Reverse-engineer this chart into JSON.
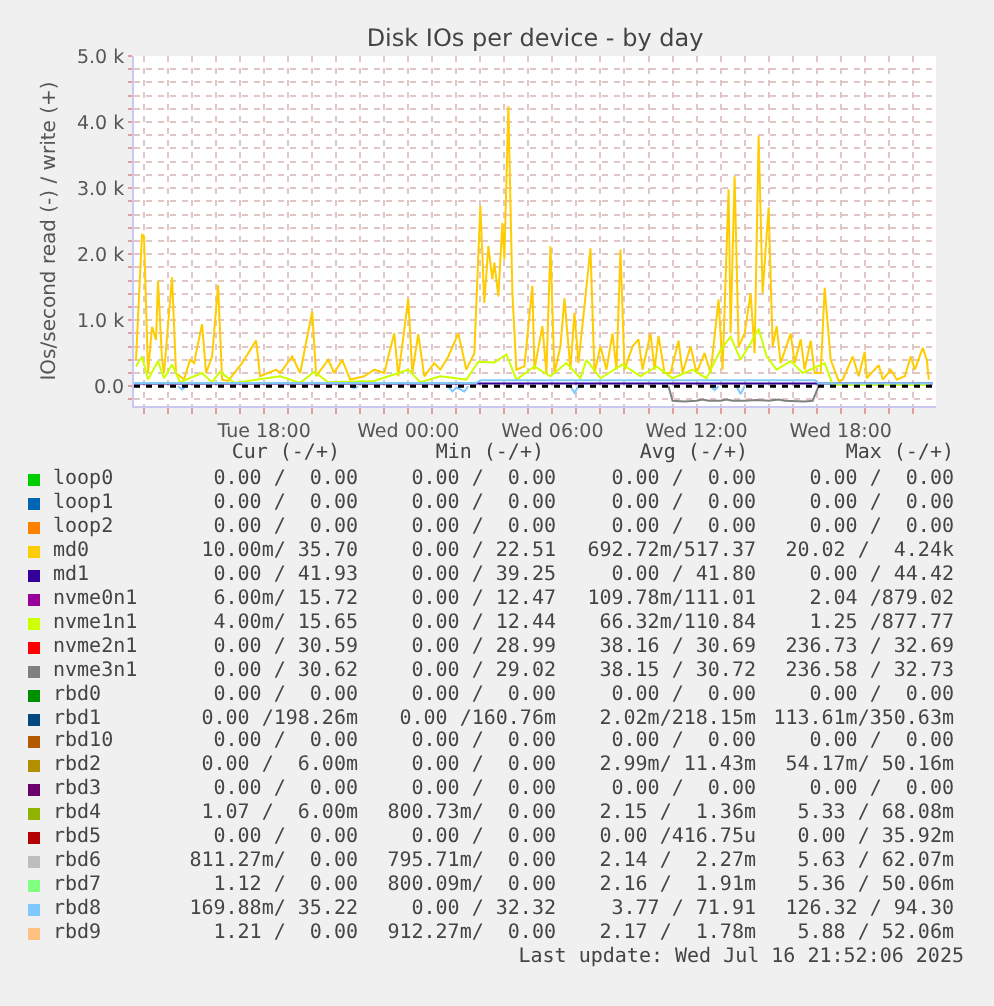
{
  "chart_data": {
    "type": "line",
    "title": "Disk IOs per device - by day",
    "ylabel": "IOs/second read (-) / write (+)",
    "xlim": [
      "2025-07-15T12:35",
      "2025-07-16T21:58"
    ],
    "xticks": [
      {
        "value": "2025-07-15T13:00",
        "label": null
      },
      {
        "value": "2025-07-15T14:00",
        "label": null
      },
      {
        "value": "2025-07-15T15:00",
        "label": null
      },
      {
        "value": "2025-07-15T16:00",
        "label": null
      },
      {
        "value": "2025-07-15T17:00",
        "label": null
      },
      {
        "value": "2025-07-15T18:00",
        "label": "Tue 18:00"
      },
      {
        "value": "2025-07-15T19:00",
        "label": null
      },
      {
        "value": "2025-07-15T20:00",
        "label": null
      },
      {
        "value": "2025-07-15T21:00",
        "label": null
      },
      {
        "value": "2025-07-15T22:00",
        "label": null
      },
      {
        "value": "2025-07-15T23:00",
        "label": null
      },
      {
        "value": "2025-07-16T00:00",
        "label": "Wed 00:00"
      },
      {
        "value": "2025-07-16T01:00",
        "label": null
      },
      {
        "value": "2025-07-16T02:00",
        "label": null
      },
      {
        "value": "2025-07-16T03:00",
        "label": null
      },
      {
        "value": "2025-07-16T04:00",
        "label": null
      },
      {
        "value": "2025-07-16T05:00",
        "label": null
      },
      {
        "value": "2025-07-16T06:00",
        "label": "Wed 06:00"
      },
      {
        "value": "2025-07-16T07:00",
        "label": null
      },
      {
        "value": "2025-07-16T08:00",
        "label": null
      },
      {
        "value": "2025-07-16T09:00",
        "label": null
      },
      {
        "value": "2025-07-16T10:00",
        "label": null
      },
      {
        "value": "2025-07-16T11:00",
        "label": null
      },
      {
        "value": "2025-07-16T12:00",
        "label": "Wed 12:00"
      },
      {
        "value": "2025-07-16T13:00",
        "label": null
      },
      {
        "value": "2025-07-16T14:00",
        "label": null
      },
      {
        "value": "2025-07-16T15:00",
        "label": null
      },
      {
        "value": "2025-07-16T16:00",
        "label": null
      },
      {
        "value": "2025-07-16T17:00",
        "label": null
      },
      {
        "value": "2025-07-16T18:00",
        "label": "Wed 18:00"
      },
      {
        "value": "2025-07-16T19:00",
        "label": null
      },
      {
        "value": "2025-07-16T20:00",
        "label": null
      },
      {
        "value": "2025-07-16T21:00",
        "label": null
      }
    ],
    "ylim": [
      -300,
      5000
    ],
    "yticks": [
      {
        "value": -200,
        "label": null
      },
      {
        "value": 0,
        "label": "0.0"
      },
      {
        "value": 200,
        "label": null
      },
      {
        "value": 400,
        "label": null
      },
      {
        "value": 600,
        "label": null
      },
      {
        "value": 800,
        "label": null
      },
      {
        "value": 1000,
        "label": "1.0 k"
      },
      {
        "value": 1200,
        "label": null
      },
      {
        "value": 1400,
        "label": null
      },
      {
        "value": 1600,
        "label": null
      },
      {
        "value": 1800,
        "label": null
      },
      {
        "value": 2000,
        "label": "2.0 k"
      },
      {
        "value": 2200,
        "label": null
      },
      {
        "value": 2400,
        "label": null
      },
      {
        "value": 2600,
        "label": null
      },
      {
        "value": 2800,
        "label": null
      },
      {
        "value": 3000,
        "label": "3.0 k"
      },
      {
        "value": 3200,
        "label": null
      },
      {
        "value": 3400,
        "label": null
      },
      {
        "value": 3600,
        "label": null
      },
      {
        "value": 3800,
        "label": null
      },
      {
        "value": 4000,
        "label": "4.0 k"
      },
      {
        "value": 4200,
        "label": null
      },
      {
        "value": 4400,
        "label": null
      },
      {
        "value": 4600,
        "label": null
      },
      {
        "value": 4800,
        "label": null
      },
      {
        "value": 5000,
        "label": "5.0 k"
      }
    ],
    "grid": true,
    "legend": "bottom",
    "x": [
      "2025-07-15T12:35",
      "2025-07-16T21:50"
    ],
    "ref_lines": [
      {
        "axis": "y",
        "value": 0,
        "color": "#000000",
        "line_style": "dotted"
      }
    ],
    "series": [
      {
        "name": "loop0",
        "color": "#00cc00",
        "values": [
          null,
          null
        ]
      },
      {
        "name": "loop1",
        "color": "#0066b3",
        "values": [
          null,
          null
        ]
      },
      {
        "name": "loop2",
        "color": "#ff8000",
        "values": [
          null,
          null
        ]
      },
      {
        "name": "md0",
        "color": "#ffcc00",
        "x": [
          "2025-07-15T12:40",
          "2025-07-15T12:55",
          "2025-07-15T13:00",
          "2025-07-15T13:10",
          "2025-07-15T13:20",
          "2025-07-15T13:30",
          "2025-07-15T13:35",
          "2025-07-15T13:45",
          "2025-07-15T13:50",
          "2025-07-15T14:10",
          "2025-07-15T14:20",
          "2025-07-15T14:40",
          "2025-07-15T14:55",
          "2025-07-15T15:05",
          "2025-07-15T15:25",
          "2025-07-15T15:35",
          "2025-07-15T15:50",
          "2025-07-15T16:05",
          "2025-07-15T16:15",
          "2025-07-15T16:30",
          "2025-07-15T17:05",
          "2025-07-15T17:40",
          "2025-07-15T17:50",
          "2025-07-15T18:30",
          "2025-07-15T18:40",
          "2025-07-15T19:10",
          "2025-07-15T19:30",
          "2025-07-15T20:00",
          "2025-07-15T20:10",
          "2025-07-15T20:40",
          "2025-07-15T20:55",
          "2025-07-15T21:15",
          "2025-07-15T21:35",
          "2025-07-15T22:10",
          "2025-07-15T22:35",
          "2025-07-15T23:00",
          "2025-07-15T23:25",
          "2025-07-15T23:35",
          "2025-07-16T00:00",
          "2025-07-16T00:10",
          "2025-07-16T00:25",
          "2025-07-16T00:40",
          "2025-07-16T01:05",
          "2025-07-16T01:20",
          "2025-07-16T01:40",
          "2025-07-16T02:05",
          "2025-07-16T02:25",
          "2025-07-16T02:45",
          "2025-07-16T03:00",
          "2025-07-16T03:10",
          "2025-07-16T03:20",
          "2025-07-16T03:30",
          "2025-07-16T03:35",
          "2025-07-16T03:45",
          "2025-07-16T03:55",
          "2025-07-16T04:00",
          "2025-07-16T04:10",
          "2025-07-16T04:20",
          "2025-07-16T04:30",
          "2025-07-16T04:50",
          "2025-07-16T05:10",
          "2025-07-16T05:15",
          "2025-07-16T05:35",
          "2025-07-16T05:45",
          "2025-07-16T05:55",
          "2025-07-16T06:05",
          "2025-07-16T06:20",
          "2025-07-16T06:30",
          "2025-07-16T06:45",
          "2025-07-16T06:55",
          "2025-07-16T07:05",
          "2025-07-16T07:20",
          "2025-07-16T07:35",
          "2025-07-16T07:45",
          "2025-07-16T08:00",
          "2025-07-16T08:15",
          "2025-07-16T08:30",
          "2025-07-16T08:40",
          "2025-07-16T08:50",
          "2025-07-16T09:00",
          "2025-07-16T09:20",
          "2025-07-16T09:35",
          "2025-07-16T09:45",
          "2025-07-16T10:05",
          "2025-07-16T10:15",
          "2025-07-16T10:25",
          "2025-07-16T10:40",
          "2025-07-16T10:55",
          "2025-07-16T11:15",
          "2025-07-16T11:25",
          "2025-07-16T11:45",
          "2025-07-16T12:00",
          "2025-07-16T12:20",
          "2025-07-16T12:35",
          "2025-07-16T12:55",
          "2025-07-16T13:05",
          "2025-07-16T13:20",
          "2025-07-16T13:25",
          "2025-07-16T13:35",
          "2025-07-16T13:45",
          "2025-07-16T14:00",
          "2025-07-16T14:15",
          "2025-07-16T14:25",
          "2025-07-16T14:35",
          "2025-07-16T14:45",
          "2025-07-16T15:00",
          "2025-07-16T15:10",
          "2025-07-16T15:20",
          "2025-07-16T15:30",
          "2025-07-16T15:55",
          "2025-07-16T16:05",
          "2025-07-16T16:20",
          "2025-07-16T16:30",
          "2025-07-16T16:45",
          "2025-07-16T16:55",
          "2025-07-16T17:10",
          "2025-07-16T17:20",
          "2025-07-16T17:35",
          "2025-07-16T17:55",
          "2025-07-16T18:05",
          "2025-07-16T18:30",
          "2025-07-16T18:45",
          "2025-07-16T19:00",
          "2025-07-16T19:05",
          "2025-07-16T19:35",
          "2025-07-16T19:45",
          "2025-07-16T20:05",
          "2025-07-16T20:20",
          "2025-07-16T20:40",
          "2025-07-16T20:55",
          "2025-07-16T21:05",
          "2025-07-16T21:25",
          "2025-07-16T21:35",
          "2025-07-16T21:40"
        ],
        "values": [
          400,
          2300,
          2270,
          200,
          900,
          700,
          1600,
          400,
          200,
          1650,
          200,
          100,
          400,
          350,
          940,
          200,
          450,
          1530,
          100,
          80,
          350,
          690,
          150,
          250,
          200,
          450,
          200,
          1130,
          150,
          400,
          200,
          400,
          100,
          150,
          250,
          200,
          800,
          150,
          1330,
          200,
          790,
          150,
          350,
          250,
          450,
          800,
          250,
          500,
          2730,
          1260,
          2120,
          1620,
          1870,
          1360,
          2470,
          1920,
          4240,
          1410,
          250,
          300,
          1520,
          250,
          910,
          200,
          2120,
          200,
          600,
          1330,
          250,
          1110,
          350,
          1210,
          2090,
          200,
          600,
          250,
          800,
          250,
          2070,
          250,
          600,
          710,
          250,
          800,
          250,
          760,
          200,
          200,
          690,
          200,
          600,
          200,
          500,
          200,
          1310,
          250,
          2980,
          800,
          3180,
          600,
          800,
          1410,
          500,
          3790,
          1410,
          2710,
          600,
          910,
          350,
          800,
          350,
          710,
          250,
          690,
          200,
          200,
          1490,
          400,
          80,
          100,
          450,
          150,
          520,
          120,
          320,
          100,
          250,
          100,
          150,
          450,
          250,
          580,
          400,
          100
        ]
      },
      {
        "name": "md1",
        "color": "#330099",
        "values": [
          40,
          40
        ]
      },
      {
        "name": "nvme0n1",
        "color": "#990099",
        "values": [
          null,
          null
        ]
      },
      {
        "name": "nvme1n1",
        "color": "#ccff00",
        "x": [
          "2025-07-15T12:40",
          "2025-07-15T12:55",
          "2025-07-15T13:10",
          "2025-07-15T13:35",
          "2025-07-15T13:50",
          "2025-07-15T14:10",
          "2025-07-15T14:30",
          "2025-07-15T15:25",
          "2025-07-15T15:50",
          "2025-07-15T16:10",
          "2025-07-15T16:45",
          "2025-07-15T18:40",
          "2025-07-15T19:30",
          "2025-07-15T20:05",
          "2025-07-15T20:40",
          "2025-07-15T22:35",
          "2025-07-16T00:00",
          "2025-07-16T00:30",
          "2025-07-16T01:20",
          "2025-07-16T02:25",
          "2025-07-16T02:55",
          "2025-07-16T03:35",
          "2025-07-16T04:05",
          "2025-07-16T04:30",
          "2025-07-16T05:15",
          "2025-07-16T05:55",
          "2025-07-16T06:35",
          "2025-07-16T07:10",
          "2025-07-16T07:25",
          "2025-07-16T08:00",
          "2025-07-16T08:55",
          "2025-07-16T09:40",
          "2025-07-16T10:20",
          "2025-07-16T11:00",
          "2025-07-16T11:50",
          "2025-07-16T12:25",
          "2025-07-16T13:00",
          "2025-07-16T13:25",
          "2025-07-16T13:50",
          "2025-07-16T14:15",
          "2025-07-16T14:35",
          "2025-07-16T14:55",
          "2025-07-16T15:20",
          "2025-07-16T15:55",
          "2025-07-16T16:25",
          "2025-07-16T17:20",
          "2025-07-16T17:40",
          "2025-07-16T21:40"
        ],
        "values": [
          300,
          450,
          100,
          380,
          120,
          330,
          60,
          200,
          60,
          220,
          50,
          150,
          50,
          220,
          60,
          80,
          250,
          60,
          150,
          100,
          370,
          360,
          480,
          100,
          300,
          150,
          350,
          120,
          400,
          120,
          330,
          150,
          300,
          120,
          250,
          120,
          550,
          750,
          400,
          650,
          870,
          450,
          250,
          380,
          200,
          350,
          20,
          20
        ]
      },
      {
        "name": "nvme2n1",
        "color": "#ff0000",
        "values": [
          null,
          null
        ]
      },
      {
        "name": "nvme3n1",
        "color": "#808080",
        "values": [
          null,
          null
        ]
      },
      {
        "color": "#808080",
        "x": [
          "2025-07-16T10:50",
          "2025-07-16T11:00",
          "2025-07-16T11:30",
          "2025-07-16T12:00",
          "2025-07-16T12:15",
          "2025-07-16T12:30",
          "2025-07-16T13:00",
          "2025-07-16T13:15",
          "2025-07-16T13:30",
          "2025-07-16T14:00",
          "2025-07-16T14:30",
          "2025-07-16T15:00",
          "2025-07-16T15:25",
          "2025-07-16T15:40",
          "2025-07-16T16:30",
          "2025-07-16T16:50",
          "2025-07-16T17:05"
        ],
        "values": [
          0,
          -220,
          -230,
          -220,
          -200,
          -220,
          -220,
          -200,
          -220,
          -220,
          -210,
          -220,
          -200,
          -220,
          -230,
          -220,
          0
        ]
      },
      {
        "name": "rbd0",
        "color": "#008f00",
        "values": [
          null,
          null
        ]
      },
      {
        "name": "rbd1",
        "color": "#00487d",
        "values": [
          null,
          null
        ]
      },
      {
        "name": "rbd10",
        "color": "#b35a00",
        "values": [
          null,
          null
        ]
      },
      {
        "name": "rbd2",
        "color": "#b38f00",
        "values": [
          null,
          null
        ]
      },
      {
        "name": "rbd3",
        "color": "#6b006b",
        "values": [
          null,
          null
        ]
      },
      {
        "name": "rbd4",
        "color": "#8fb300",
        "values": [
          null,
          null
        ]
      },
      {
        "name": "rbd5",
        "color": "#b30000",
        "values": [
          null,
          null
        ]
      },
      {
        "name": "rbd6",
        "color": "#bebebe",
        "values": [
          null,
          null
        ]
      },
      {
        "name": "rbd7",
        "color": "#80ff80",
        "values": [
          null,
          null
        ]
      },
      {
        "name": "rbd8",
        "color": "#80c9ff",
        "x": [
          "2025-07-15T12:35",
          "2025-07-16T02:50",
          "2025-07-16T03:00",
          "2025-07-16T16:55",
          "2025-07-16T17:05",
          "2025-07-16T21:50"
        ],
        "values": [
          50,
          50,
          90,
          90,
          40,
          40
        ]
      },
      {
        "color": "#80c9ff",
        "x": [
          "2025-07-15T14:25",
          "2025-07-15T14:35",
          "2025-07-15T14:45",
          "2025-07-15T18:00",
          "2025-07-15T21:35",
          "2025-07-15T21:45",
          "2025-07-15T21:55",
          "2025-07-16T00:00",
          "2025-07-16T01:40",
          "2025-07-16T01:50",
          "2025-07-16T02:00",
          "2025-07-16T02:20",
          "2025-07-16T02:30",
          "2025-07-16T04:00",
          "2025-07-16T06:45",
          "2025-07-16T06:55",
          "2025-07-16T07:05",
          "2025-07-16T10:00",
          "2025-07-16T12:35",
          "2025-07-16T12:45",
          "2025-07-16T12:55",
          "2025-07-16T13:15",
          "2025-07-16T13:40",
          "2025-07-16T13:50",
          "2025-07-16T14:00"
        ],
        "values": [
          0,
          -50,
          0,
          null,
          0,
          -30,
          0,
          null,
          0,
          -80,
          -20,
          -80,
          0,
          null,
          0,
          -100,
          0,
          null,
          0,
          -60,
          0,
          null,
          0,
          -120,
          0
        ]
      },
      {
        "name": "rbd9",
        "color": "#ffc080",
        "values": [
          null,
          null
        ]
      }
    ],
    "annotations": [
      "Cur (-/+)",
      "Min (-/+)",
      "Avg (-/+)",
      "Max (-/+)",
      "0.00 /  0.00",
      "0.00 /  0.00",
      "0.00 /  0.00",
      "0.00 /  0.00",
      "0.00 /  0.00",
      "0.00 /  0.00",
      "0.00 /  0.00",
      "0.00 /  0.00",
      "0.00 /  0.00",
      "0.00 /  0.00",
      "0.00 /  0.00",
      "0.00 /  0.00",
      "10.00m/ 35.70",
      "0.00 / 22.51",
      "692.72m/517.37",
      "20.02 /  4.24k",
      "0.00 / 41.93",
      "0.00 / 39.25",
      "0.00 / 41.80",
      "0.00 / 44.42",
      "6.00m/ 15.72",
      "0.00 / 12.47",
      "109.78m/111.01",
      "2.04 /879.02",
      "4.00m/ 15.65",
      "0.00 / 12.44",
      "66.32m/110.84",
      "1.25 /877.77",
      "0.00 / 30.59",
      "0.00 / 28.99",
      "38.16 / 30.69",
      "236.73 / 32.69",
      "0.00 / 30.62",
      "0.00 / 29.02",
      "38.15 / 30.72",
      "236.58 / 32.73",
      "0.00 /  0.00",
      "0.00 /  0.00",
      "0.00 /  0.00",
      "0.00 /  0.00",
      "0.00 /198.26m",
      "0.00 /160.76m",
      "2.02m/218.15m",
      "113.61m/350.63m",
      "0.00 /  0.00",
      "0.00 /  0.00",
      "0.00 /  0.00",
      "0.00 /  0.00",
      "0.00 /  6.00m",
      "0.00 /  0.00",
      "2.99m/ 11.43m",
      "54.17m/ 50.16m",
      "0.00 /  0.00",
      "0.00 /  0.00",
      "0.00 /  0.00",
      "0.00 /  0.00",
      "1.07 /  6.00m",
      "800.73m/  0.00",
      "2.15 /  1.36m",
      "5.33 / 68.08m",
      "0.00 /  0.00",
      "0.00 /  0.00",
      "0.00 /416.75u",
      "0.00 / 35.92m",
      "811.27m/  0.00",
      "795.71m/  0.00",
      "2.14 /  2.27m",
      "5.63 / 62.07m",
      "1.12 /  0.00",
      "800.09m/  0.00",
      "2.16 /  1.91m",
      "5.36 / 50.06m",
      "169.88m/ 35.22",
      "0.00 / 32.32",
      "3.77 / 71.91",
      "126.32 / 94.30",
      "1.21 /  0.00",
      "912.27m/  0.00",
      "2.17 /  1.78m",
      "5.88 / 52.06m",
      "Last update: Wed Jul 16 21:52:06 2025"
    ]
  }
}
